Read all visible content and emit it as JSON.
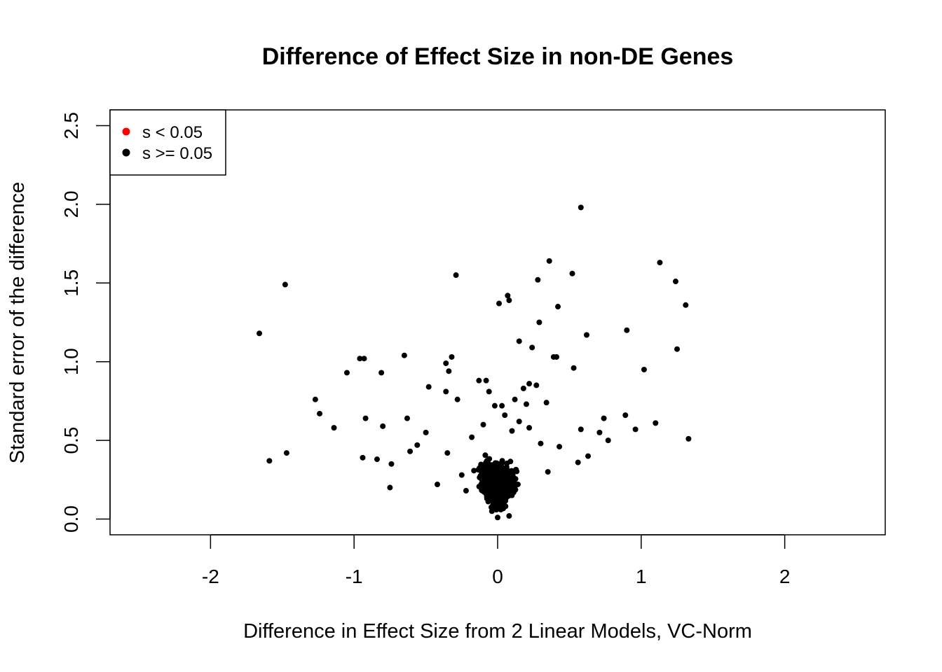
{
  "chart_data": {
    "type": "scatter",
    "title": "Difference of Effect Size in non-DE Genes",
    "xlabel": "Difference in Effect Size from 2 Linear Models, VC-Norm",
    "ylabel": "Standard error of the difference",
    "xlim": [
      -2.7,
      2.7
    ],
    "ylim": [
      -0.1,
      2.6
    ],
    "x_ticks": [
      "-2",
      "-1",
      "0",
      "1",
      "2"
    ],
    "x_tick_values": [
      -2,
      -1,
      0,
      1,
      2
    ],
    "y_ticks": [
      "0.0",
      "0.5",
      "1.0",
      "1.5",
      "2.0",
      "2.5"
    ],
    "y_tick_values": [
      0,
      0.5,
      1.0,
      1.5,
      2.0,
      2.5
    ],
    "grid": false,
    "legend_position": "top-left",
    "series": [
      {
        "name": "s < 0.05",
        "color": "#ff0000",
        "x": [],
        "y": []
      },
      {
        "name": "s >= 0.05",
        "color": "#000000",
        "x": [
          0.58,
          0.36,
          -0.29,
          0.52,
          1.13,
          1.24,
          0.28,
          -1.48,
          0.07,
          0.01,
          0.08,
          1.31,
          0.42,
          0.29,
          0.9,
          -1.66,
          0.62,
          0.15,
          1.25,
          0.24,
          -0.65,
          -0.96,
          -0.93,
          -0.32,
          0.53,
          0.41,
          0.39,
          1.02,
          -0.36,
          -1.05,
          -0.81,
          -0.34,
          -0.13,
          -0.08,
          0.27,
          0.18,
          -0.48,
          -0.36,
          0.22,
          -0.28,
          -0.06,
          0.34,
          0.2,
          0.12,
          -1.27,
          0.03,
          -1.24,
          0.89,
          0.74,
          -0.63,
          -0.92,
          1.1,
          -1.14,
          -0.8,
          0.96,
          1.33,
          0.71,
          0.77,
          -0.5,
          0.58,
          -0.94,
          -0.84,
          -1.59,
          -1.47,
          -0.74,
          -0.75,
          -0.42,
          0.56,
          0.63,
          -0.61,
          -0.56,
          -0.02,
          0.05,
          -0.1,
          0.1,
          0.15,
          -0.18,
          0.22,
          0.3,
          -0.35,
          0.43,
          -0.25,
          -0.22,
          0.35,
          0.0,
          -0.04,
          0.08
        ],
        "y": [
          1.98,
          1.64,
          1.55,
          1.56,
          1.63,
          1.51,
          1.52,
          1.49,
          1.42,
          1.37,
          1.39,
          1.36,
          1.35,
          1.25,
          1.2,
          1.18,
          1.17,
          1.13,
          1.08,
          1.09,
          1.04,
          1.02,
          1.02,
          1.03,
          0.96,
          1.03,
          1.03,
          0.95,
          0.99,
          0.93,
          0.93,
          0.94,
          0.88,
          0.88,
          0.85,
          0.83,
          0.84,
          0.81,
          0.86,
          0.76,
          0.81,
          0.74,
          0.73,
          0.76,
          0.76,
          0.72,
          0.67,
          0.66,
          0.64,
          0.64,
          0.64,
          0.61,
          0.58,
          0.59,
          0.57,
          0.51,
          0.55,
          0.5,
          0.55,
          0.57,
          0.39,
          0.38,
          0.37,
          0.42,
          0.35,
          0.2,
          0.22,
          0.36,
          0.4,
          0.43,
          0.47,
          0.72,
          0.66,
          0.6,
          0.56,
          0.62,
          0.52,
          0.58,
          0.48,
          0.42,
          0.46,
          0.28,
          0.18,
          0.3,
          0.01,
          0.05,
          0.02
        ]
      }
    ],
    "dense_cluster": {
      "count": 1400,
      "x_center": 0.0,
      "x_spread": 0.18,
      "y_center": 0.22,
      "y_spread": 0.1
    }
  }
}
